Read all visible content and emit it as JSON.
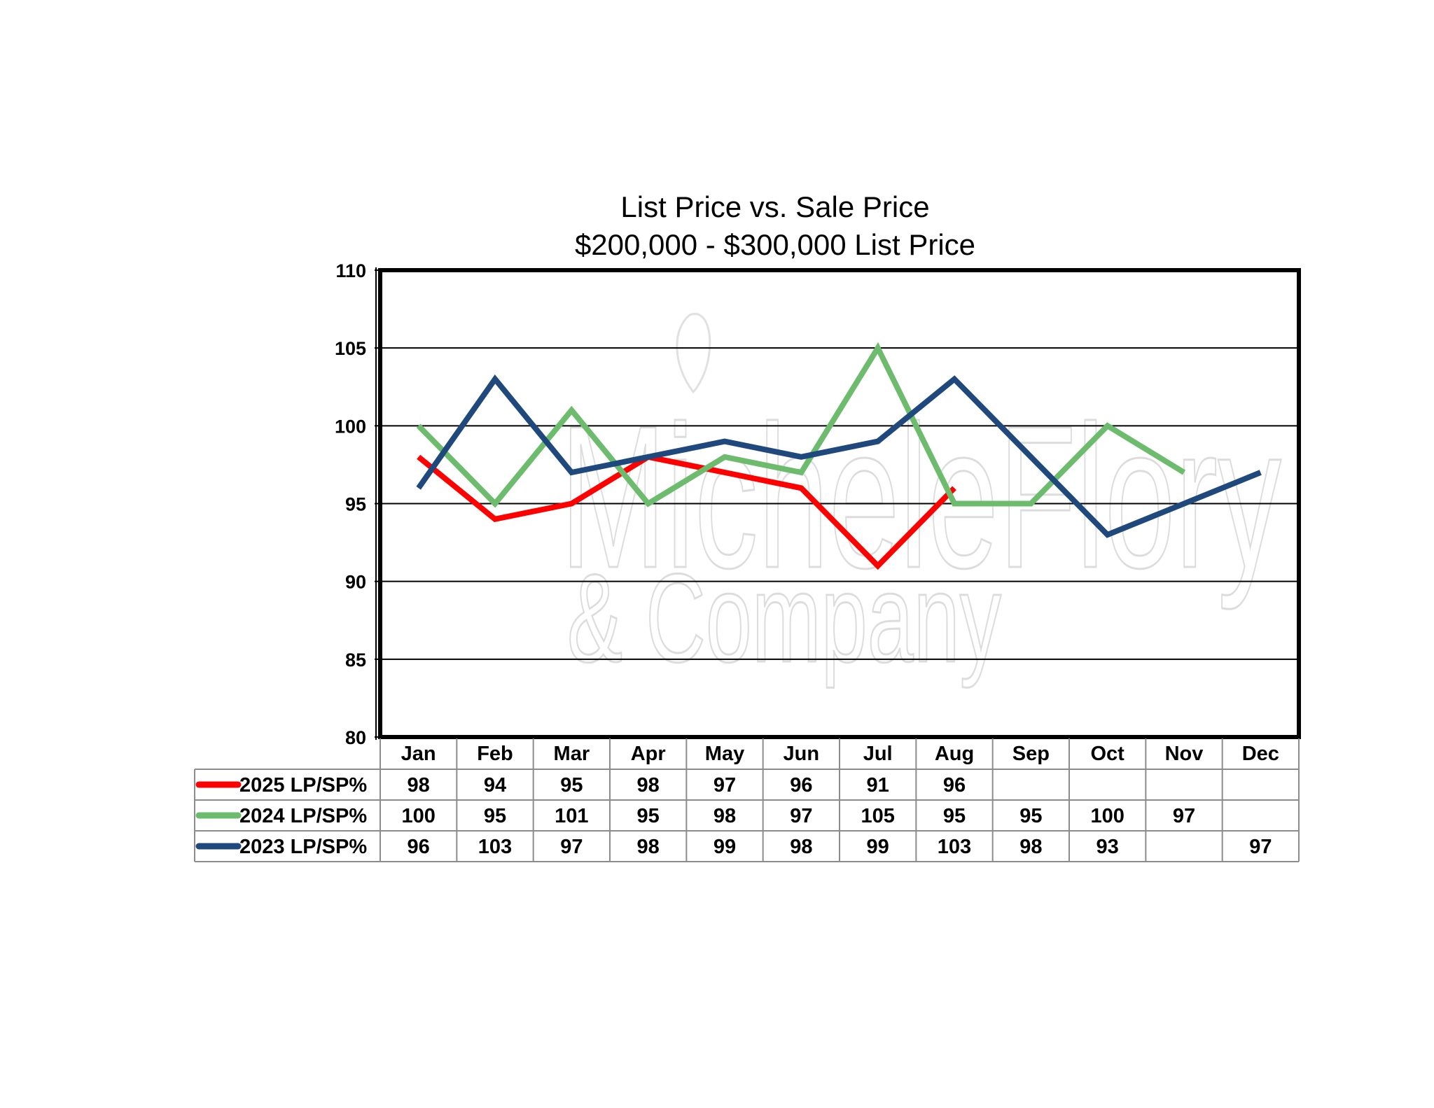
{
  "chart_data": {
    "type": "line",
    "title": "List Price vs. Sale Price",
    "subtitle": "$200,000 - $300,000 List Price",
    "categories": [
      "Jan",
      "Feb",
      "Mar",
      "Apr",
      "May",
      "Jun",
      "Jul",
      "Aug",
      "Sep",
      "Oct",
      "Nov",
      "Dec"
    ],
    "ylim": [
      80,
      110
    ],
    "yticks": [
      80,
      85,
      90,
      95,
      100,
      105,
      110
    ],
    "grid": true,
    "legend": "bottom data table",
    "series": [
      {
        "name": "2025 LP/SP%",
        "color": "#ff0000",
        "values": [
          98,
          94,
          95,
          98,
          97,
          96,
          91,
          96,
          null,
          null,
          null,
          null
        ]
      },
      {
        "name": "2024 LP/SP%",
        "color": "#6dbb6d",
        "values": [
          100,
          95,
          101,
          95,
          98,
          97,
          105,
          95,
          95,
          100,
          97,
          null
        ]
      },
      {
        "name": "2023 LP/SP%",
        "color": "#1f497d",
        "values": [
          96,
          103,
          97,
          98,
          99,
          98,
          99,
          103,
          98,
          93,
          null,
          97
        ]
      }
    ]
  },
  "watermark": {
    "line1": "MicheleFlory",
    "line2": "& Company"
  }
}
